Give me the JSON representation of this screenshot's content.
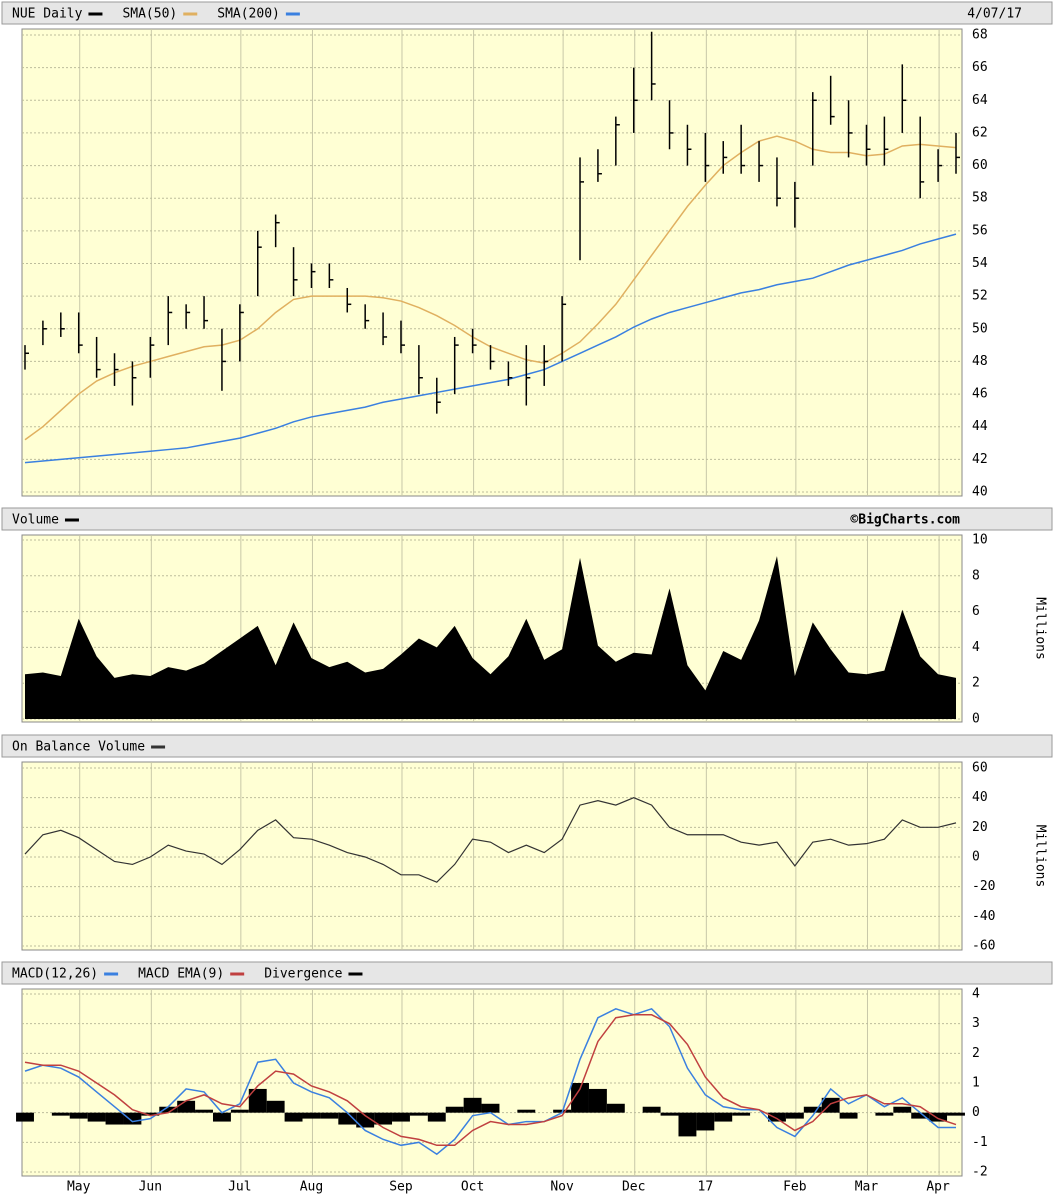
{
  "chart_data": [
    {
      "type": "ohlc",
      "title": "NUE Daily",
      "date": "4/07/17",
      "color": "#000000",
      "grid": true,
      "ohlc": {
        "high": [
          49,
          50.5,
          51,
          51,
          49.5,
          48.5,
          48,
          49.5,
          52,
          51.5,
          52,
          50,
          51.5,
          56,
          57,
          55,
          54,
          54,
          52.5,
          51.5,
          51,
          50.5,
          49,
          47,
          49.5,
          50,
          49,
          48,
          49,
          49,
          52,
          60.5,
          61,
          63,
          66,
          68.2,
          64,
          62.5,
          62,
          61.5,
          62.5,
          61.5,
          60.5,
          59,
          64.5,
          65.5,
          64,
          62.5,
          63,
          66.2,
          63,
          61,
          62
        ],
        "low": [
          47.5,
          49,
          49.5,
          48.5,
          47,
          46.5,
          45.3,
          47,
          49,
          50,
          50,
          46.2,
          48,
          52,
          55,
          52,
          52.5,
          52.5,
          51,
          50,
          49,
          48.5,
          46,
          44.8,
          46,
          48.5,
          47.5,
          46.5,
          45.3,
          46.5,
          48,
          54.2,
          59,
          60,
          62,
          64,
          61,
          60,
          59,
          59.5,
          59.5,
          59,
          57.5,
          56.2,
          60,
          62.5,
          60.5,
          60,
          60,
          62,
          58,
          59,
          59.5
        ],
        "close": [
          48.5,
          50,
          50,
          49,
          47.5,
          47.5,
          47,
          49,
          51,
          51,
          50.5,
          48,
          51,
          55,
          56.5,
          53,
          53.5,
          53,
          51.5,
          50.5,
          49.5,
          49,
          47,
          45.5,
          49,
          49,
          48,
          47,
          47,
          48,
          51.5,
          59,
          59.5,
          62.5,
          64,
          65,
          62,
          61,
          60,
          60.5,
          60,
          60,
          58,
          58,
          64,
          63,
          62,
          61,
          61,
          64,
          59,
          60,
          60.5
        ]
      },
      "series": [
        {
          "name": "SMA(50)",
          "color": "#e0b060",
          "values": [
            43.2,
            44,
            45,
            46,
            46.8,
            47.3,
            47.7,
            48,
            48.3,
            48.6,
            48.9,
            49,
            49.3,
            50,
            51,
            51.8,
            52,
            52,
            52,
            52,
            51.9,
            51.7,
            51.3,
            50.8,
            50.2,
            49.5,
            48.9,
            48.5,
            48.1,
            47.9,
            48.5,
            49.2,
            50.3,
            51.5,
            53,
            54.5,
            56,
            57.5,
            58.8,
            60,
            60.8,
            61.5,
            61.8,
            61.5,
            61,
            60.8,
            60.8,
            60.6,
            60.7,
            61.2,
            61.3,
            61.2,
            61.1
          ]
        },
        {
          "name": "SMA(200)",
          "color": "#3a80e0",
          "values": [
            41.8,
            41.9,
            42,
            42.1,
            42.2,
            42.3,
            42.4,
            42.5,
            42.6,
            42.7,
            42.9,
            43.1,
            43.3,
            43.6,
            43.9,
            44.3,
            44.6,
            44.8,
            45,
            45.2,
            45.5,
            45.7,
            45.9,
            46.1,
            46.3,
            46.5,
            46.7,
            46.9,
            47.2,
            47.5,
            48,
            48.5,
            49,
            49.5,
            50.1,
            50.6,
            51,
            51.3,
            51.6,
            51.9,
            52.2,
            52.4,
            52.7,
            52.9,
            53.1,
            53.5,
            53.9,
            54.2,
            54.5,
            54.8,
            55.2,
            55.5,
            55.8
          ]
        }
      ],
      "ylim": [
        40,
        68
      ],
      "yticks": [
        40,
        42,
        44,
        46,
        48,
        50,
        52,
        54,
        56,
        58,
        60,
        62,
        64,
        66,
        68
      ]
    },
    {
      "type": "area",
      "title": "Volume",
      "source": "©BigCharts.com",
      "y_label": "Millions",
      "color": "#000000",
      "grid": true,
      "values": [
        2.5,
        2.6,
        2.4,
        5.6,
        3.5,
        2.3,
        2.5,
        2.4,
        2.9,
        2.7,
        3.1,
        3.8,
        4.5,
        5.2,
        3,
        5.4,
        3.4,
        2.9,
        3.2,
        2.6,
        2.8,
        3.6,
        4.5,
        4,
        5.2,
        3.4,
        2.5,
        3.5,
        5.6,
        3.3,
        3.9,
        9,
        4.1,
        3.2,
        3.7,
        3.6,
        7.3,
        3,
        1.6,
        3.8,
        3.3,
        5.5,
        9.1,
        2.4,
        5.4,
        3.9,
        2.6,
        2.5,
        2.7,
        6.1,
        3.5,
        2.5,
        2.3
      ],
      "ylim": [
        0,
        10
      ],
      "yticks": [
        0,
        2,
        4,
        6,
        8,
        10
      ]
    },
    {
      "type": "line",
      "title": "On Balance Volume",
      "y_label": "Millions",
      "color": "#333333",
      "grid": true,
      "values": [
        2,
        15,
        18,
        13,
        5,
        -3,
        -5,
        0,
        8,
        4,
        2,
        -5,
        5,
        18,
        25,
        13,
        12,
        8,
        3,
        0,
        -5,
        -12,
        -12,
        -17,
        -5,
        12,
        10,
        3,
        8,
        3,
        12,
        35,
        38,
        35,
        40,
        35,
        20,
        15,
        15,
        15,
        10,
        8,
        10,
        -6,
        10,
        12,
        8,
        9,
        12,
        25,
        20,
        20,
        23
      ],
      "ylim": [
        -60,
        60
      ],
      "yticks": [
        -60,
        -40,
        -20,
        0,
        20,
        40,
        60
      ]
    },
    {
      "type": "macd",
      "grid": true,
      "categories": [
        null,
        null,
        null,
        "May",
        null,
        null,
        null,
        "Jun",
        null,
        null,
        null,
        null,
        "Jul",
        null,
        null,
        null,
        "Aug",
        null,
        null,
        null,
        null,
        "Sep",
        null,
        null,
        null,
        "Oct",
        null,
        null,
        null,
        null,
        "Nov",
        null,
        null,
        null,
        "Dec",
        null,
        null,
        null,
        "17",
        null,
        null,
        null,
        null,
        "Feb",
        null,
        null,
        null,
        "Mar",
        null,
        null,
        null,
        "Apr",
        null
      ],
      "series": [
        {
          "name": "MACD(12,26)",
          "color": "#3a80e0",
          "values": [
            1.4,
            1.6,
            1.5,
            1.2,
            0.7,
            0.2,
            -0.3,
            -0.2,
            0.2,
            0.8,
            0.7,
            0,
            0.3,
            1.7,
            1.8,
            1,
            0.7,
            0.5,
            0,
            -0.6,
            -0.9,
            -1.1,
            -1,
            -1.4,
            -0.9,
            -0.1,
            0,
            -0.4,
            -0.3,
            -0.3,
            0,
            1.8,
            3.2,
            3.5,
            3.3,
            3.5,
            2.9,
            1.5,
            0.6,
            0.2,
            0.1,
            0.1,
            -0.5,
            -0.8,
            -0.1,
            0.8,
            0.3,
            0.6,
            0.2,
            0.5,
            0,
            -0.5,
            -0.5
          ]
        },
        {
          "name": "MACD EMA(9)",
          "color": "#c04040",
          "values": [
            1.7,
            1.6,
            1.6,
            1.4,
            1,
            0.6,
            0.1,
            -0.1,
            0,
            0.4,
            0.6,
            0.3,
            0.2,
            0.9,
            1.4,
            1.3,
            0.9,
            0.7,
            0.4,
            -0.1,
            -0.5,
            -0.8,
            -0.9,
            -1.1,
            -1.1,
            -0.6,
            -0.3,
            -0.4,
            -0.4,
            -0.3,
            -0.1,
            0.8,
            2.4,
            3.2,
            3.3,
            3.3,
            3,
            2.3,
            1.2,
            0.5,
            0.2,
            0.1,
            -0.2,
            -0.6,
            -0.3,
            0.3,
            0.5,
            0.6,
            0.3,
            0.3,
            0.2,
            -0.2,
            -0.4
          ]
        },
        {
          "name": "Divergence",
          "color": "#000000",
          "bars": true,
          "values": [
            -0.3,
            0,
            -0.1,
            -0.2,
            -0.3,
            -0.4,
            -0.4,
            -0.1,
            0.2,
            0.4,
            0.1,
            -0.3,
            0.1,
            0.8,
            0.4,
            -0.3,
            -0.2,
            -0.2,
            -0.4,
            -0.5,
            -0.4,
            -0.3,
            -0.1,
            -0.3,
            0.2,
            0.5,
            0.3,
            0,
            0.1,
            0,
            0.1,
            1,
            0.8,
            0.3,
            0,
            0.2,
            -0.1,
            -0.8,
            -0.6,
            -0.3,
            -0.1,
            0,
            -0.3,
            -0.2,
            0.2,
            0.5,
            -0.2,
            0,
            -0.1,
            0.2,
            -0.2,
            -0.3,
            -0.1
          ]
        }
      ],
      "ylim": [
        -2,
        4
      ],
      "yticks": [
        -2,
        -1,
        0,
        1,
        2,
        3,
        4
      ]
    }
  ]
}
